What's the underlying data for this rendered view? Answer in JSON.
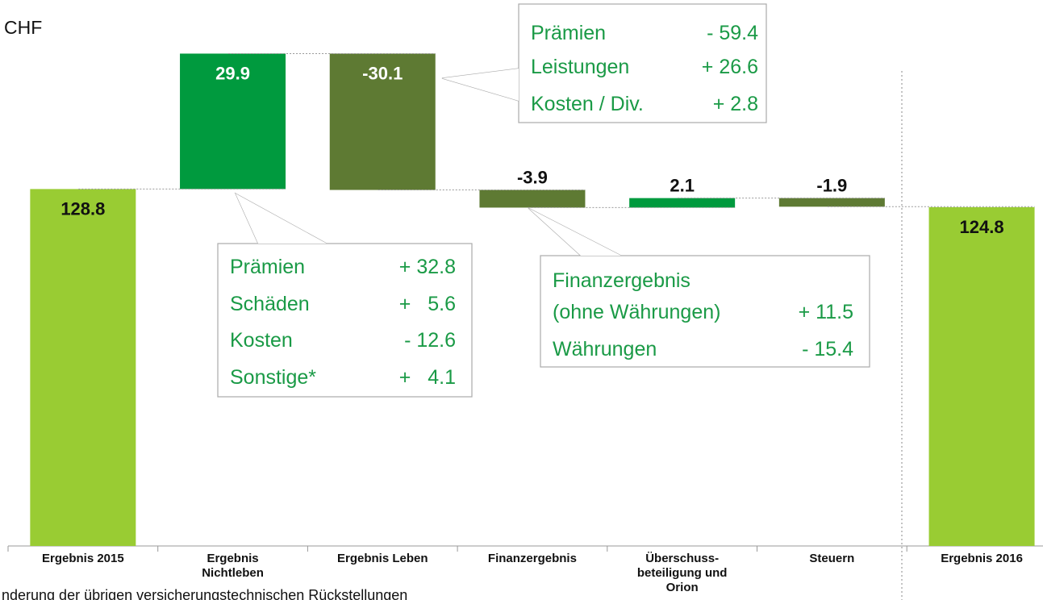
{
  "chart_data": {
    "type": "waterfall",
    "unit": "CHF",
    "categories": [
      "Ergebnis 2015",
      "Ergebnis Nichtleben",
      "Ergebnis Leben",
      "Finanzergebnis",
      "Überschuss-beteiligung und Orion",
      "Steuern",
      "Ergebnis 2016"
    ],
    "values": [
      128.8,
      29.9,
      -30.1,
      -3.9,
      2.1,
      -1.9,
      124.8
    ],
    "measure": [
      "total",
      "relative",
      "relative",
      "relative",
      "relative",
      "relative",
      "total"
    ],
    "total_color": "#99cc33",
    "increase_color": "#009a3e",
    "decrease_color": "#5e7a33",
    "ylim": [
      50,
      170
    ],
    "annotations": [
      {
        "rows": [
          [
            "Prämien",
            "- 59.4"
          ],
          [
            "Leistungen",
            "+ 26.6"
          ],
          [
            "Kosten / Div.",
            "+ 2.8"
          ]
        ]
      },
      {
        "rows": [
          [
            "Prämien",
            "+ 32.8"
          ],
          [
            "Schäden",
            "+   5.6"
          ],
          [
            "Kosten",
            "- 12.6"
          ],
          [
            "Sonstige*",
            "+   4.1"
          ]
        ]
      },
      {
        "rows": [
          [
            "Finanzergebnis"
          ],
          [
            "(ohne Währungen)",
            "+ 11.5"
          ],
          [
            "Währungen",
            "- 15.4"
          ]
        ]
      }
    ],
    "footnote": "nderung der übrigen versicherungstechnischen Rückstellungen"
  }
}
